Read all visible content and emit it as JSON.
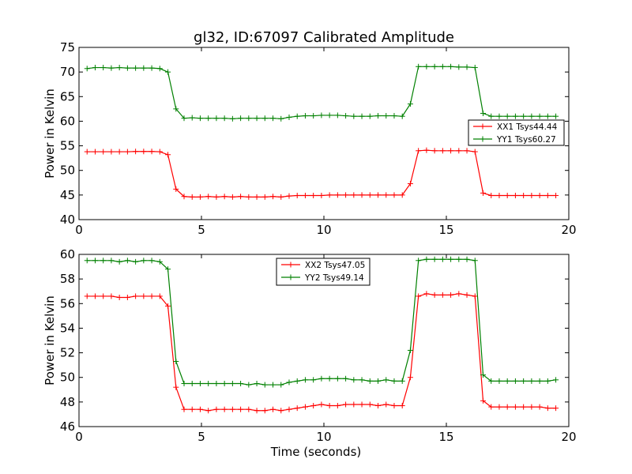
{
  "figure": {
    "title": "gl32, ID:67097 Calibrated Amplitude",
    "background": "#ffffff"
  },
  "colors": {
    "red": "#ff0000",
    "green": "#008000",
    "axis": "#000000"
  },
  "chart_data": [
    {
      "type": "line",
      "ylabel": "Power in Kelvin",
      "xlabel": "",
      "xlim": [
        0,
        20
      ],
      "ylim": [
        40,
        75
      ],
      "xticks": [
        0,
        5,
        10,
        15,
        20
      ],
      "yticks": [
        40,
        45,
        50,
        55,
        60,
        65,
        70,
        75
      ],
      "legend_position": "center-right",
      "x": [
        0.33,
        0.66,
        0.99,
        1.32,
        1.65,
        1.98,
        2.31,
        2.64,
        2.97,
        3.3,
        3.63,
        3.96,
        4.29,
        4.62,
        4.95,
        5.28,
        5.61,
        5.94,
        6.27,
        6.6,
        6.93,
        7.26,
        7.59,
        7.92,
        8.25,
        8.58,
        8.91,
        9.24,
        9.57,
        9.9,
        10.23,
        10.56,
        10.89,
        11.22,
        11.55,
        11.88,
        12.21,
        12.54,
        12.87,
        13.2,
        13.53,
        13.86,
        14.19,
        14.52,
        14.85,
        15.18,
        15.51,
        15.84,
        16.17,
        16.5,
        16.83,
        17.16,
        17.49,
        17.82,
        18.15,
        18.48,
        18.81,
        19.14,
        19.47
      ],
      "series": [
        {
          "name": "XX1 Tsys44.44",
          "color": "#ff0000",
          "values": [
            53.8,
            53.8,
            53.8,
            53.8,
            53.8,
            53.8,
            53.85,
            53.85,
            53.85,
            53.8,
            53.2,
            46.2,
            44.7,
            44.6,
            44.6,
            44.7,
            44.6,
            44.7,
            44.6,
            44.7,
            44.6,
            44.6,
            44.6,
            44.7,
            44.6,
            44.8,
            44.9,
            44.9,
            44.9,
            44.9,
            45.0,
            45.0,
            45.0,
            45.0,
            45.0,
            45.0,
            45.0,
            45.0,
            45.0,
            45.0,
            47.3,
            54.0,
            54.1,
            54.0,
            54.0,
            54.0,
            54.0,
            54.0,
            53.8,
            45.4,
            44.9,
            44.9,
            44.9,
            44.9,
            44.9,
            44.9,
            44.9,
            44.9,
            44.9
          ]
        },
        {
          "name": "YY1 Tsys60.27",
          "color": "#008000",
          "values": [
            70.7,
            70.9,
            70.9,
            70.8,
            70.9,
            70.8,
            70.8,
            70.8,
            70.8,
            70.7,
            70.0,
            62.5,
            60.6,
            60.7,
            60.6,
            60.6,
            60.6,
            60.6,
            60.5,
            60.6,
            60.6,
            60.6,
            60.6,
            60.6,
            60.5,
            60.8,
            61.0,
            61.1,
            61.1,
            61.2,
            61.2,
            61.2,
            61.1,
            61.0,
            61.0,
            61.0,
            61.1,
            61.1,
            61.1,
            61.0,
            63.5,
            71.1,
            71.1,
            71.1,
            71.1,
            71.1,
            71.0,
            71.0,
            70.9,
            61.6,
            61.0,
            61.0,
            61.0,
            61.0,
            61.0,
            61.0,
            61.0,
            61.0,
            61.0
          ]
        }
      ]
    },
    {
      "type": "line",
      "ylabel": "Power in Kelvin",
      "xlabel": "Time (seconds)",
      "xlim": [
        0,
        20
      ],
      "ylim": [
        46,
        60
      ],
      "xticks": [
        0,
        5,
        10,
        15,
        20
      ],
      "yticks": [
        46,
        48,
        50,
        52,
        54,
        56,
        58,
        60
      ],
      "legend_position": "upper-center",
      "x": [
        0.33,
        0.66,
        0.99,
        1.32,
        1.65,
        1.98,
        2.31,
        2.64,
        2.97,
        3.3,
        3.63,
        3.96,
        4.29,
        4.62,
        4.95,
        5.28,
        5.61,
        5.94,
        6.27,
        6.6,
        6.93,
        7.26,
        7.59,
        7.92,
        8.25,
        8.58,
        8.91,
        9.24,
        9.57,
        9.9,
        10.23,
        10.56,
        10.89,
        11.22,
        11.55,
        11.88,
        12.21,
        12.54,
        12.87,
        13.2,
        13.53,
        13.86,
        14.19,
        14.52,
        14.85,
        15.18,
        15.51,
        15.84,
        16.17,
        16.5,
        16.83,
        17.16,
        17.49,
        17.82,
        18.15,
        18.48,
        18.81,
        19.14,
        19.47
      ],
      "series": [
        {
          "name": "XX2 Tsys47.05",
          "color": "#ff0000",
          "values": [
            56.6,
            56.6,
            56.6,
            56.6,
            56.5,
            56.5,
            56.6,
            56.6,
            56.6,
            56.6,
            55.8,
            49.2,
            47.4,
            47.4,
            47.4,
            47.3,
            47.4,
            47.4,
            47.4,
            47.4,
            47.4,
            47.3,
            47.3,
            47.4,
            47.3,
            47.4,
            47.5,
            47.6,
            47.7,
            47.8,
            47.7,
            47.7,
            47.8,
            47.8,
            47.8,
            47.8,
            47.7,
            47.8,
            47.7,
            47.7,
            50.0,
            56.6,
            56.8,
            56.7,
            56.7,
            56.7,
            56.8,
            56.7,
            56.6,
            48.1,
            47.6,
            47.6,
            47.6,
            47.6,
            47.6,
            47.6,
            47.6,
            47.5,
            47.5
          ]
        },
        {
          "name": "YY2 Tsys49.14",
          "color": "#008000",
          "values": [
            59.5,
            59.5,
            59.5,
            59.5,
            59.4,
            59.5,
            59.4,
            59.5,
            59.5,
            59.4,
            58.8,
            51.3,
            49.5,
            49.5,
            49.5,
            49.5,
            49.5,
            49.5,
            49.5,
            49.5,
            49.4,
            49.5,
            49.4,
            49.4,
            49.4,
            49.6,
            49.7,
            49.8,
            49.8,
            49.9,
            49.9,
            49.9,
            49.9,
            49.8,
            49.8,
            49.7,
            49.7,
            49.8,
            49.7,
            49.7,
            52.2,
            59.5,
            59.6,
            59.6,
            59.6,
            59.6,
            59.6,
            59.6,
            59.5,
            50.2,
            49.7,
            49.7,
            49.7,
            49.7,
            49.7,
            49.7,
            49.7,
            49.7,
            49.8
          ]
        }
      ]
    }
  ]
}
